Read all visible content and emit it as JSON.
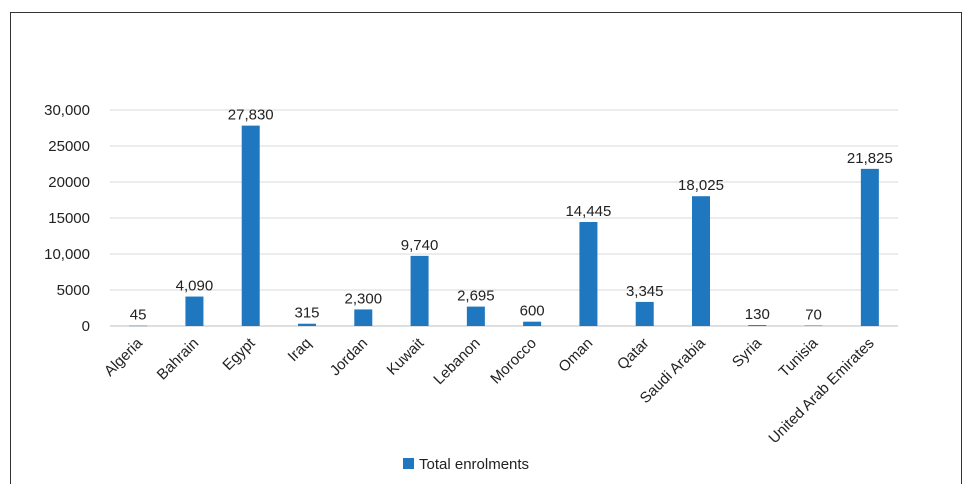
{
  "chart_data": {
    "type": "bar",
    "categories": [
      "Algeria",
      "Bahrain",
      "Egypt",
      "Iraq",
      "Jordan",
      "Kuwait",
      "Lebanon",
      "Morocco",
      "Oman",
      "Qatar",
      "Saudi Arabia",
      "Syria",
      "Tunisia",
      "United Arab Emirates"
    ],
    "series": [
      {
        "name": "Total enrolments",
        "values": [
          45,
          4090,
          27830,
          315,
          2300,
          9740,
          2695,
          600,
          14445,
          3345,
          18025,
          130,
          70,
          21825
        ],
        "labels": [
          "45",
          "4,090",
          "27,830",
          "315",
          "2,300",
          "9,740",
          "2,695",
          "600",
          "14,445",
          "3,345",
          "18,025",
          "130",
          "70",
          "21,825"
        ],
        "color": "#1f77c0"
      }
    ],
    "y_ticks": [
      "0",
      "5000",
      "10,000",
      "15000",
      "20000",
      "25000",
      "30,000"
    ],
    "y_tick_values": [
      0,
      5000,
      10000,
      15000,
      20000,
      25000,
      30000
    ],
    "ylim": [
      0,
      30000
    ],
    "grid": true,
    "legend_position": "bottom"
  }
}
